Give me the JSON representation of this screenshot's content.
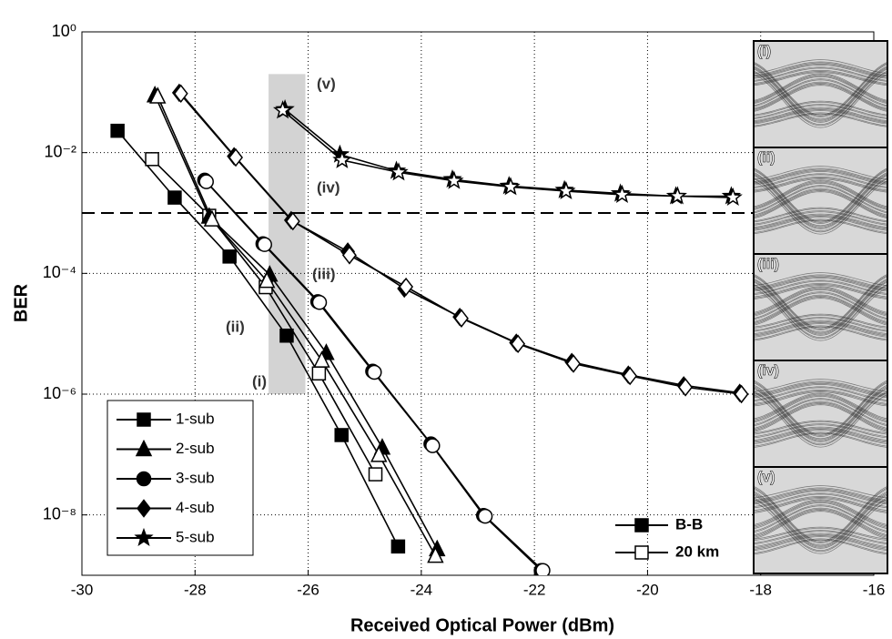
{
  "chart_data": {
    "type": "line",
    "xlabel": "Received Optical Power (dBm)",
    "ylabel": "BER",
    "xlim": [
      -30,
      -16
    ],
    "xticks": [
      -30,
      -28,
      -26,
      -24,
      -22,
      -20,
      -18,
      -16
    ],
    "ylim": [
      1e-09,
      1
    ],
    "yscale": "log",
    "yticks": [
      {
        "value": 1,
        "label": "10⁰"
      },
      {
        "value": 0.01,
        "label": "10⁻²"
      },
      {
        "value": 0.0001,
        "label": "10⁻⁴"
      },
      {
        "value": 1e-06,
        "label": "10⁻⁶"
      },
      {
        "value": 1e-08,
        "label": "10⁻⁸"
      }
    ],
    "grid": true,
    "threshold": 0.001,
    "highlight": {
      "x": [
        -26.7,
        -26.05
      ],
      "y": [
        1e-06,
        0.2
      ],
      "color": "#d3d3d3"
    },
    "series": [
      {
        "marker": "square",
        "fill": "#000",
        "x": [
          -29.37,
          -28.36,
          -27.39,
          -26.38,
          -25.41,
          -24.41
        ],
        "values": [
          0.023,
          0.0018,
          0.00019,
          9.3e-06,
          2.1e-07,
          3e-09
        ]
      },
      {
        "marker": "square",
        "fill": "#fff",
        "x": [
          -28.76,
          -27.75,
          -26.75,
          -25.81,
          -24.81
        ],
        "values": [
          0.0078,
          0.0009,
          5.9e-05,
          2.2e-06,
          4.7e-08
        ]
      },
      {
        "marker": "triangle",
        "fill": "#000",
        "x": [
          -28.71,
          -27.75,
          -26.68,
          -25.68,
          -24.69,
          -23.72
        ],
        "values": [
          0.089,
          0.00087,
          9.5e-05,
          4.8e-06,
          1.3e-07,
          2.7e-09
        ]
      },
      {
        "marker": "triangle",
        "fill": "#fff",
        "x": [
          -28.66,
          -27.7,
          -26.73,
          -25.76,
          -24.75,
          -23.75
        ],
        "values": [
          0.085,
          0.00078,
          7.5e-05,
          3.6e-06,
          9.8e-08,
          2.1e-09
        ]
      },
      {
        "marker": "circle",
        "fill": "#000",
        "x": [
          -27.83,
          -26.8,
          -25.83,
          -24.86,
          -23.83,
          -22.9,
          -21.88
        ],
        "values": [
          0.0035,
          0.00031,
          3.4e-05,
          2.4e-06,
          1.5e-07,
          9.8e-09,
          1.2e-09
        ]
      },
      {
        "marker": "circle",
        "fill": "#fff",
        "x": [
          -27.8,
          -26.77,
          -25.8,
          -24.83,
          -23.8,
          -22.87,
          -21.85
        ],
        "values": [
          0.0033,
          0.0003,
          3.3e-05,
          2.3e-06,
          1.4e-07,
          9.5e-09,
          1.2e-09
        ]
      },
      {
        "marker": "diamond",
        "fill": "#000",
        "x": [
          -28.28,
          -27.31,
          -26.3,
          -25.3,
          -24.3,
          -23.32,
          -22.32,
          -21.34,
          -20.34,
          -19.36,
          -18.37
        ],
        "values": [
          0.098,
          0.0087,
          0.00076,
          0.00023,
          5.6e-05,
          1.9e-05,
          7.1e-06,
          3.4e-06,
          2.1e-06,
          1.4e-06,
          1.05e-06
        ]
      },
      {
        "marker": "diamond",
        "fill": "#fff",
        "x": [
          -28.25,
          -27.28,
          -26.27,
          -25.27,
          -24.27,
          -23.29,
          -22.29,
          -21.31,
          -20.31,
          -19.33,
          -18.34
        ],
        "values": [
          0.095,
          0.0083,
          0.00073,
          0.0002,
          6e-05,
          1.8e-05,
          6.8e-06,
          3.2e-06,
          2e-06,
          1.3e-06,
          1e-06
        ]
      },
      {
        "marker": "star",
        "fill": "#000",
        "x": [
          -26.41,
          -25.44,
          -24.44,
          -23.45,
          -22.45,
          -21.47,
          -20.48,
          -19.5,
          -18.52
        ],
        "values": [
          0.052,
          0.0093,
          0.005,
          0.0036,
          0.0028,
          0.0024,
          0.0021,
          0.0019,
          0.0019
        ]
      },
      {
        "marker": "star",
        "fill": "#fff",
        "x": [
          -26.45,
          -25.4,
          -24.4,
          -23.42,
          -22.42,
          -21.44,
          -20.45,
          -19.47,
          -18.49
        ],
        "values": [
          0.05,
          0.0075,
          0.0047,
          0.0034,
          0.0027,
          0.0023,
          0.002,
          0.0019,
          0.0018
        ]
      }
    ],
    "legend": [
      {
        "label": "1-sub",
        "marker": "square"
      },
      {
        "label": "2-sub",
        "marker": "triangle"
      },
      {
        "label": "3-sub",
        "marker": "circle"
      },
      {
        "label": "4-sub",
        "marker": "diamond"
      },
      {
        "label": "5-sub",
        "marker": "star"
      }
    ],
    "legend2": [
      {
        "label": "B-B",
        "fill": "#000"
      },
      {
        "label": "20 km",
        "fill": "#fff"
      }
    ],
    "annotations": [
      "(v)",
      "(iv)",
      "(iii)",
      "(ii)",
      "(i)"
    ],
    "insets": [
      "(i)",
      "(ii)",
      "(iii)",
      "(iv)",
      "(v)"
    ]
  }
}
